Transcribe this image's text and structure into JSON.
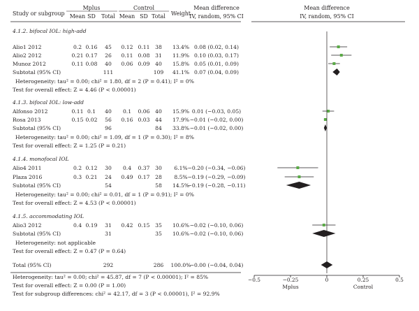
{
  "header": {
    "study": "Study or subgroup",
    "mplus": "Mplus",
    "control": "Control",
    "cols": [
      "Mean",
      "SD",
      "Total",
      "Mean",
      "SD",
      "Total"
    ],
    "weight": "Weight",
    "md_title": "Mean difference",
    "md_sub": "IV, random, 95% CI",
    "plot_title": "Mean difference",
    "plot_sub": "IV, random, 95% CI"
  },
  "groups": [
    {
      "title": "4.1.2. bifocal IOL: high-add",
      "studies": [
        {
          "name": "Alio1 2012",
          "m1": "0.2",
          "sd1": "0.16",
          "n1": "45",
          "m2": "0.12",
          "sd2": "0.11",
          "n2": "38",
          "weight": "13.4%",
          "ci_text": "0.08 (0.02, 0.14)",
          "md": 0.08,
          "lo": 0.02,
          "hi": 0.14
        },
        {
          "name": "Alio2 2012",
          "m1": "0.21",
          "sd1": "0.17",
          "n1": "26",
          "m2": "0.11",
          "sd2": "0.08",
          "n2": "31",
          "weight": "11.9%",
          "ci_text": "0.10 (0.03, 0.17)",
          "md": 0.1,
          "lo": 0.03,
          "hi": 0.17
        },
        {
          "name": "Munoz 2012",
          "m1": "0.11",
          "sd1": "0.08",
          "n1": "40",
          "m2": "0.06",
          "sd2": "0.09",
          "n2": "40",
          "weight": "15.8%",
          "ci_text": "0.05 (0.01, 0.09)",
          "md": 0.05,
          "lo": 0.01,
          "hi": 0.09
        }
      ],
      "subtotal": {
        "label": "Subtotal (95% CI)",
        "n1": "111",
        "n2": "109",
        "weight": "41.1%",
        "ci_text": "0.07 (0.04, 0.09)",
        "md": 0.07,
        "lo": 0.04,
        "hi": 0.09
      },
      "het": "Heterogeneity: tau² = 0.00; chi² = 1.80, df = 2 (P = 0.41); I² = 0%",
      "test": "Test for overall effect: Z = 4.46 (P < 0.00001)"
    },
    {
      "title": "4.1.3. bifocal IOL: low-add",
      "studies": [
        {
          "name": "Alfonso 2012",
          "m1": "0.11",
          "sd1": "0.1",
          "n1": "40",
          "m2": "0.1",
          "sd2": "0.06",
          "n2": "40",
          "weight": "15.9%",
          "ci_text": "0.01 (−0.03, 0.05)",
          "md": 0.01,
          "lo": -0.03,
          "hi": 0.05
        },
        {
          "name": "Rosa 2013",
          "m1": "0.15",
          "sd1": "0.02",
          "n1": "56",
          "m2": "0.16",
          "sd2": "0.03",
          "n2": "44",
          "weight": "17.9%",
          "ci_text": "−0.01 (−0.02, 0.00)",
          "md": -0.01,
          "lo": -0.02,
          "hi": 0.0
        }
      ],
      "subtotal": {
        "label": "Subtotal (95% CI)",
        "n1": "96",
        "n2": "84",
        "weight": "33.8%",
        "ci_text": "−0.01 (−0.02, 0.00)",
        "md": -0.01,
        "lo": -0.02,
        "hi": 0.0
      },
      "het": "Heterogeneity: tau² = 0.00; chi² = 1.09, df = 1 (P = 0.30); I² = 8%",
      "test": "Test for overall effect: Z = 1.25 (P = 0.21)"
    },
    {
      "title": "4.1.4. monofocal IOL",
      "studies": [
        {
          "name": "Alio4 2011",
          "m1": "0.2",
          "sd1": "0.12",
          "n1": "30",
          "m2": "0.4",
          "sd2": "0.37",
          "n2": "30",
          "weight": "6.1%",
          "ci_text": "−0.20 (−0.34, −0.06)",
          "md": -0.2,
          "lo": -0.34,
          "hi": -0.06
        },
        {
          "name": "Plaza 2016",
          "m1": "0.3",
          "sd1": "0.21",
          "n1": "24",
          "m2": "0.49",
          "sd2": "0.17",
          "n2": "28",
          "weight": "8.5%",
          "ci_text": "−0.19 (−0.29, −0.09)",
          "md": -0.19,
          "lo": -0.29,
          "hi": -0.09
        }
      ],
      "subtotal": {
        "label": "Subtotal (95% CI)",
        "n1": "54",
        "n2": "58",
        "weight": "14.5%",
        "ci_text": "−0.19 (−0.28, −0.11)",
        "md": -0.19,
        "lo": -0.28,
        "hi": -0.11
      },
      "het": "Heterogeneity: tau² = 0.00; chi² = 0.01, df = 1 (P = 0.91); I² = 0%",
      "test": "Test for overall effect: Z = 4.53 (P < 0.00001)"
    },
    {
      "title": "4.1.5. accommodating IOL",
      "studies": [
        {
          "name": "Alio3 2012",
          "m1": "0.4",
          "sd1": "0.19",
          "n1": "31",
          "m2": "0.42",
          "sd2": "0.15",
          "n2": "35",
          "weight": "10.6%",
          "ci_text": "−0.02 (−0.10, 0.06)",
          "md": -0.02,
          "lo": -0.1,
          "hi": 0.06
        }
      ],
      "subtotal": {
        "label": "Subtotal (95% CI)",
        "n1": "31",
        "n2": "35",
        "weight": "10.6%",
        "ci_text": "−0.02 (−0.10, 0.06)",
        "md": -0.02,
        "lo": -0.1,
        "hi": 0.06
      },
      "het": "Heterogeneity: not applicable",
      "test": "Test for overall effect: Z = 0.47 (P = 0.64)"
    }
  ],
  "total": {
    "label": "Total (95% CI)",
    "n1": "292",
    "n2": "286",
    "weight": "100.0%",
    "ci_text": "−0.00 (−0.04, 0.04)",
    "md": 0.0,
    "lo": -0.04,
    "hi": 0.04
  },
  "footer": [
    "Heterogeneity: tau² = 0.00; chi² = 45.87, df = 7 (P < 0.00001); I² = 85%",
    "Test for overall effect: Z = 0.00 (P = 1.00)",
    "Test for subgroup differences: chi² = 42.17, df = 3 (P < 0.00001), I² = 92.9%"
  ],
  "chart_data": {
    "type": "forest",
    "xlim": [
      -0.5,
      0.5
    ],
    "ticks": [
      -0.5,
      -0.25,
      0,
      0.25,
      0.5
    ],
    "tick_labels": [
      "−0.5",
      "−0.25",
      "0",
      "0.25",
      "0.5"
    ],
    "left_label": "Mplus",
    "right_label": "Control",
    "colors": {
      "marker": "#5aaa46",
      "ink": "#231f20"
    }
  }
}
